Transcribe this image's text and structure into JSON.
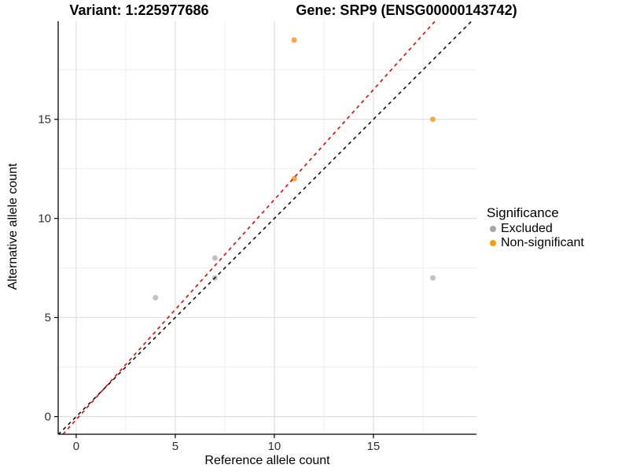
{
  "chart_data": {
    "type": "scatter",
    "title_left": "Variant: 1:225977686",
    "title_right": "Gene: SRP9 (ENSG00000143742)",
    "xlabel": "Reference allele count",
    "ylabel": "Alternative allele count",
    "xlim": [
      -0.91,
      20.2
    ],
    "ylim": [
      -0.89,
      19.95
    ],
    "xticks": [
      0,
      5,
      10,
      15
    ],
    "yticks": [
      0,
      5,
      10,
      15
    ],
    "xminor": [
      2.5,
      7.5,
      12.5,
      17.5
    ],
    "yminor": [
      2.5,
      7.5,
      12.5,
      17.5
    ],
    "grid": {
      "major_color": "#DCDCDC",
      "minor_color": "#EEEEEE",
      "grid_on": true
    },
    "axis_color": "#000000",
    "tick_label_color": "#303030",
    "legend": {
      "title": "Significance",
      "position": "right"
    },
    "series": [
      {
        "name": "Excluded",
        "point_color": "#C2C2C2",
        "legend_color": "#A5A5A5",
        "points": [
          [
            4,
            6
          ],
          [
            7,
            7
          ],
          [
            7,
            8
          ],
          [
            18,
            7
          ]
        ]
      },
      {
        "name": "Non-significant",
        "point_color": "#F9A843",
        "legend_color": "#FF9D00",
        "points": [
          [
            11,
            12
          ],
          [
            11,
            19
          ],
          [
            18,
            15
          ]
        ]
      }
    ],
    "ab_lines": [
      {
        "name": "identity-line",
        "slope": 1,
        "intercept": 0,
        "color": "#111111",
        "style": "dashed"
      },
      {
        "name": "fitted-ratio-line",
        "slope": 1.11,
        "intercept": -0.15,
        "color": "#F40000",
        "style": "dashed"
      }
    ]
  }
}
